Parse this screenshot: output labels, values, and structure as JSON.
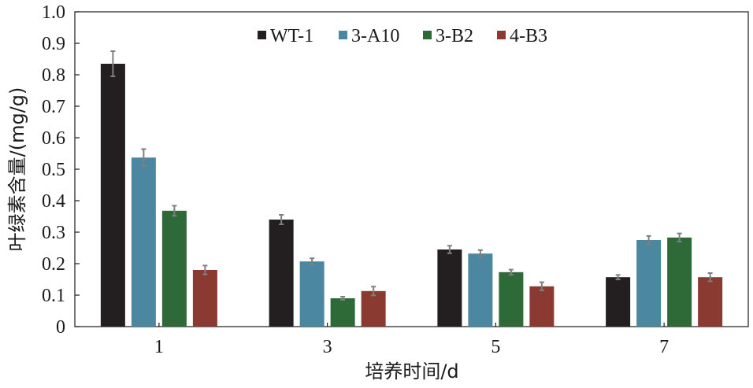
{
  "chart_data": {
    "type": "bar",
    "xlabel": "培养时间/d",
    "ylabel": "叶绿素含量/(mg/g)",
    "categories": [
      "1",
      "3",
      "5",
      "7"
    ],
    "ylim": [
      0,
      1.0
    ],
    "yticks": [
      "0",
      "0.1",
      "0.2",
      "0.3",
      "0.4",
      "0.5",
      "0.6",
      "0.7",
      "0.8",
      "0.9",
      "1.0"
    ],
    "legend_position": "top-center",
    "grid": false,
    "series": [
      {
        "name": "WT-1",
        "color": "#231f20",
        "values": [
          0.835,
          0.34,
          0.245,
          0.157
        ],
        "errors": [
          0.04,
          0.015,
          0.012,
          0.007
        ]
      },
      {
        "name": "3-A10",
        "color": "#4b87a0",
        "values": [
          0.537,
          0.207,
          0.232,
          0.275
        ],
        "errors": [
          0.027,
          0.01,
          0.011,
          0.013
        ]
      },
      {
        "name": "3-B2",
        "color": "#2e6a37",
        "values": [
          0.368,
          0.09,
          0.173,
          0.283
        ],
        "errors": [
          0.016,
          0.005,
          0.008,
          0.013
        ]
      },
      {
        "name": "4-B3",
        "color": "#8b3a32",
        "values": [
          0.18,
          0.113,
          0.128,
          0.157
        ],
        "errors": [
          0.014,
          0.014,
          0.013,
          0.013
        ]
      }
    ]
  }
}
